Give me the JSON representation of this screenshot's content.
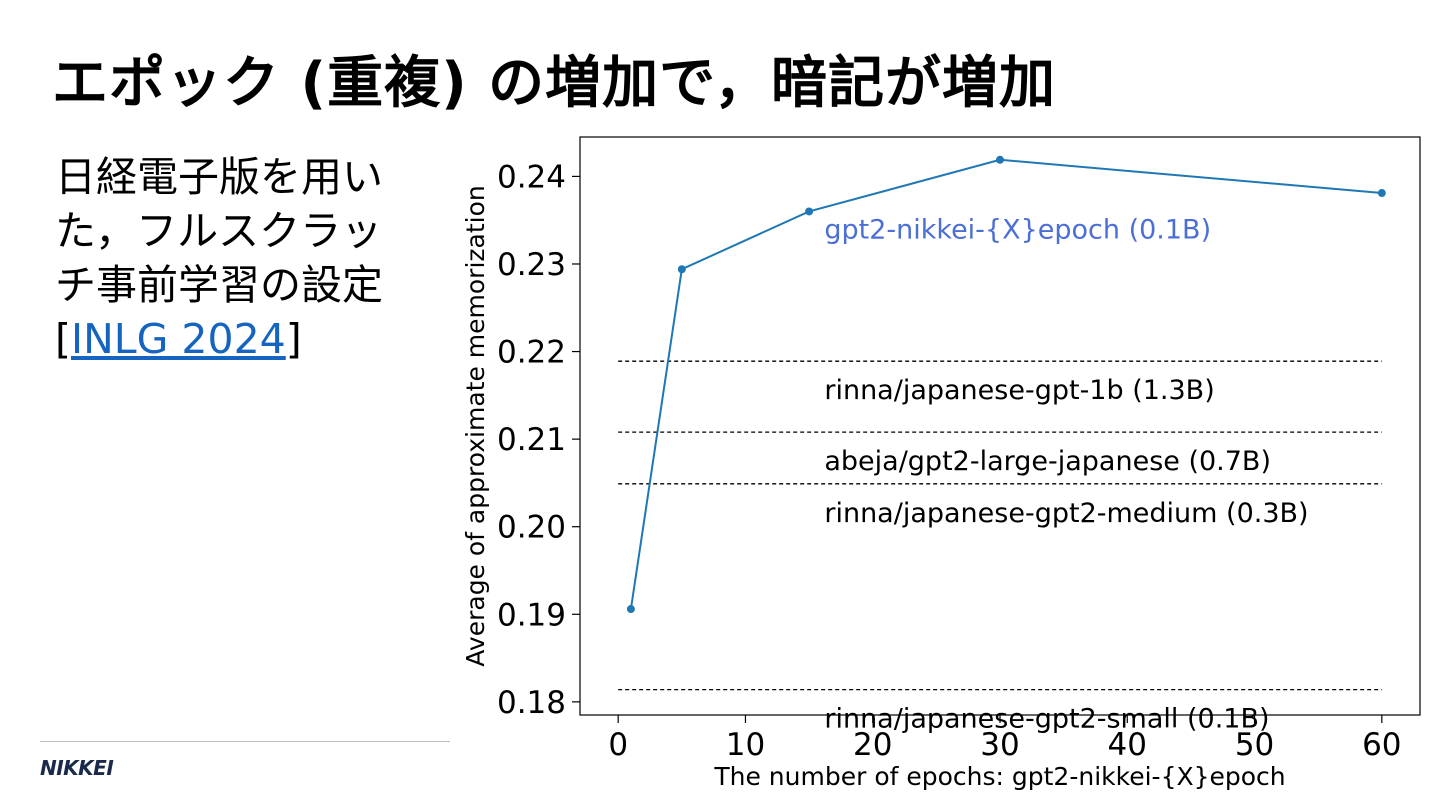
{
  "slide": {
    "title": "エポック (重複) の増加で，暗記が増加",
    "body_text": "日経電子版を用いた，フルスクラッチ事前学習の設定",
    "cite_open": "[",
    "cite_link": "INLG 2024",
    "cite_close": "]",
    "logo": "NIKKEI"
  },
  "colors": {
    "series_line": "#1f77b4",
    "series_label": "#4c6fd6",
    "baseline": "#000000",
    "link": "#1565c0"
  },
  "chart_data": {
    "type": "line",
    "xlabel": "The number of epochs: gpt2-nikkei-{X}epoch",
    "ylabel": "Average of approximate memorization",
    "xlim": [
      -3,
      63
    ],
    "ylim": [
      0.1785,
      0.2445
    ],
    "xticks": [
      0,
      10,
      20,
      30,
      40,
      50,
      60
    ],
    "yticks": [
      0.18,
      0.19,
      0.2,
      0.21,
      0.22,
      0.23,
      0.24
    ],
    "ytick_labels": [
      "0.18",
      "0.19",
      "0.20",
      "0.21",
      "0.22",
      "0.23",
      "0.24"
    ],
    "grid": false,
    "series": [
      {
        "name": "gpt2-nikkei-{X}epoch (0.1B)",
        "x": [
          1,
          5,
          15,
          30,
          60
        ],
        "y": [
          0.1906,
          0.2294,
          0.236,
          0.2419,
          0.2381
        ]
      }
    ],
    "baselines": [
      {
        "name": "rinna/japanese-gpt-1b (1.3B)",
        "y": 0.2189
      },
      {
        "name": "abeja/gpt2-large-japanese (0.7B)",
        "y": 0.2108
      },
      {
        "name": "rinna/japanese-gpt2-medium (0.3B)",
        "y": 0.2049
      },
      {
        "name": "rinna/japanese-gpt2-small (0.1B)",
        "y": 0.1814
      }
    ]
  }
}
